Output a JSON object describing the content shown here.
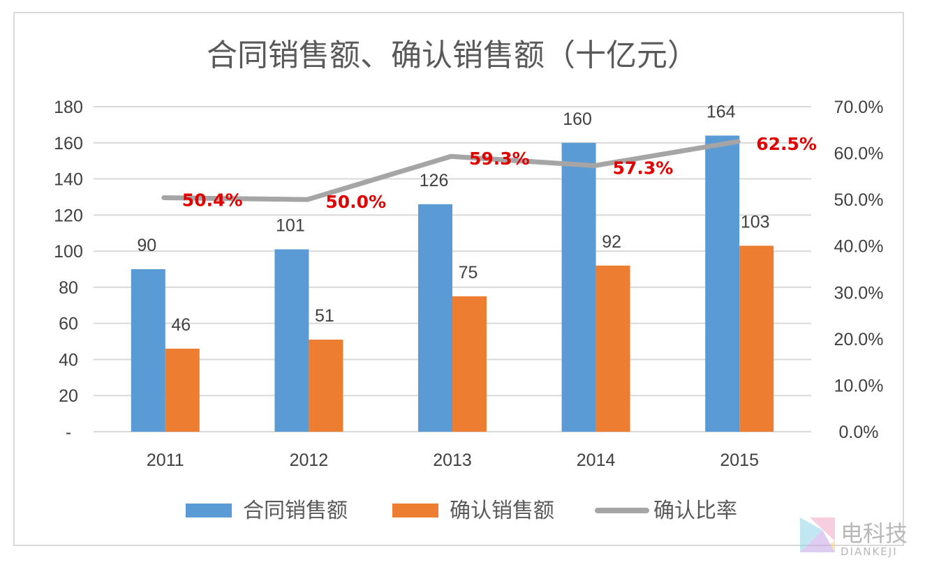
{
  "chart_data": {
    "type": "bar",
    "title": "合同销售额、确认销售额（十亿元）",
    "categories": [
      "2011",
      "2012",
      "2013",
      "2014",
      "2015"
    ],
    "series": [
      {
        "name": "合同销售额",
        "kind": "bar",
        "axis": "left",
        "color": "#5b9bd5",
        "values": [
          90,
          101,
          126,
          160,
          164
        ]
      },
      {
        "name": "确认销售额",
        "kind": "bar",
        "axis": "left",
        "color": "#ed7d31",
        "values": [
          46,
          51,
          75,
          92,
          103
        ]
      },
      {
        "name": "确认比率",
        "kind": "line",
        "axis": "right",
        "color": "#a5a5a5",
        "values": [
          50.4,
          50.0,
          59.3,
          57.3,
          62.5
        ],
        "labels": [
          "50.4%",
          "50.0%",
          "59.3%",
          "57.3%",
          "62.5%"
        ],
        "label_color": "#e00000"
      }
    ],
    "bar_labels": [
      [
        "90",
        "101",
        "126",
        "160",
        "164"
      ],
      [
        "46",
        "51",
        "75",
        "92",
        "103"
      ]
    ],
    "left_axis": {
      "ylim": [
        0,
        180
      ],
      "ticks": [
        0,
        20,
        40,
        60,
        80,
        100,
        120,
        140,
        160,
        180
      ],
      "tick_labels": [
        "-",
        "20",
        "40",
        "60",
        "80",
        "100",
        "120",
        "140",
        "160",
        "180"
      ]
    },
    "right_axis": {
      "ylim": [
        0,
        70
      ],
      "ticks": [
        0,
        10,
        20,
        30,
        40,
        50,
        60,
        70
      ],
      "tick_labels": [
        "0.0%",
        "10.0%",
        "20.0%",
        "30.0%",
        "40.0%",
        "50.0%",
        "60.0%",
        "70.0%"
      ]
    },
    "grid": true,
    "legend_position": "bottom"
  },
  "watermark": {
    "text": "电科技",
    "subtext": "DIANKEJI"
  }
}
